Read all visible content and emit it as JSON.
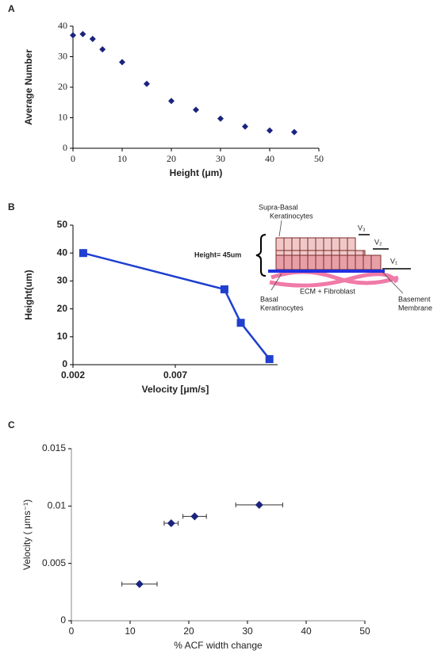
{
  "chart_data": [
    {
      "type": "scatter",
      "label": "A",
      "xlabel": "Height (μm)",
      "ylabel": "Average Number",
      "x": [
        0,
        2,
        4,
        6,
        10,
        15,
        20,
        25,
        30,
        35,
        40,
        45
      ],
      "values": [
        37,
        37.4,
        35.8,
        32.4,
        28.2,
        21.1,
        15.5,
        12.6,
        9.7,
        7.1,
        5.8,
        5.3
      ],
      "color": "#1a237e",
      "xlim": [
        0,
        50
      ],
      "xticks": [
        0,
        10,
        20,
        30,
        40,
        50
      ],
      "ylim": [
        0,
        40
      ],
      "yticks": [
        0,
        10,
        20,
        30,
        40
      ]
    },
    {
      "type": "line",
      "label": "B",
      "xlabel": "Velocity [μm/s]",
      "ylabel": "Height(um)",
      "x": [
        0.0025,
        0.0094,
        0.0102,
        0.0116
      ],
      "values": [
        40,
        27,
        15,
        2
      ],
      "color": "#1f3fcf",
      "xlim": [
        0.002,
        0.012
      ],
      "xticks": [
        0.002,
        0.007
      ],
      "ylim": [
        0,
        50
      ],
      "yticks": [
        0,
        10,
        20,
        30,
        40,
        50
      ],
      "annotations": [
        [
          "Supra-Basal",
          "Keratinocytes"
        ],
        [
          "Height= 45um"
        ],
        [
          "V₃"
        ],
        [
          "V₂"
        ],
        [
          "V₁"
        ],
        [
          "Basal",
          "Keratinocytes"
        ],
        [
          "ECM + Fibroblast"
        ],
        [
          "Basement",
          "Membrane"
        ]
      ]
    },
    {
      "type": "scatter",
      "label": "C",
      "xlabel": "% ACF width change",
      "ylabel": "Velocity ( μms⁻¹)",
      "x": [
        11.6,
        17,
        21,
        32
      ],
      "values": [
        0.0032,
        0.0085,
        0.0091,
        0.0101
      ],
      "x_errors": [
        3,
        1.2,
        2,
        4
      ],
      "color": "#1a237e",
      "xlim": [
        0,
        50
      ],
      "xticks": [
        0,
        10,
        20,
        30,
        40,
        50
      ],
      "ylim": [
        0,
        0.015
      ],
      "yticks": [
        0,
        0.005,
        0.01,
        0.015
      ]
    }
  ]
}
